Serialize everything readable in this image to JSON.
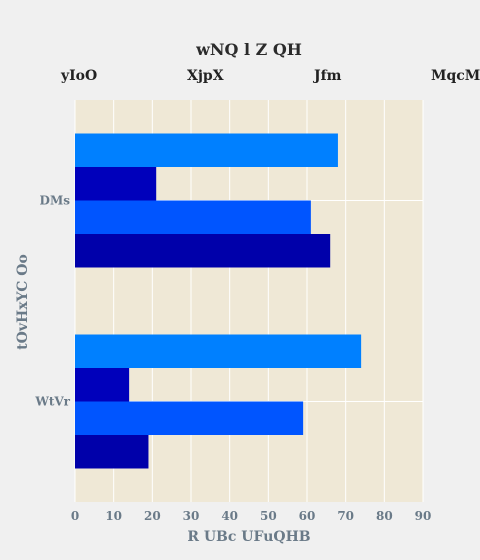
{
  "chart_data": {
    "type": "bar",
    "orientation": "horizontal",
    "title": "wNQ l Z QH",
    "xlabel": "R UBc UFuQHB",
    "ylabel": "tOvHxYC Oo",
    "xlim": [
      0,
      90
    ],
    "x_ticks": [
      0,
      10,
      20,
      30,
      40,
      50,
      60,
      70,
      80,
      90
    ],
    "categories": [
      "DMs",
      "WtVr"
    ],
    "legend_position": "top",
    "grid": true,
    "series": [
      {
        "name": "yIoO",
        "color": "#0080ff",
        "values": [
          68,
          74
        ]
      },
      {
        "name": "XjpX",
        "color": "#0000bb",
        "values": [
          21,
          14
        ]
      },
      {
        "name": "Jfm",
        "color": "#0055ff",
        "values": [
          61,
          59
        ]
      },
      {
        "name": "MqcMU",
        "color": "#0000aa",
        "values": [
          66,
          19
        ]
      }
    ]
  }
}
